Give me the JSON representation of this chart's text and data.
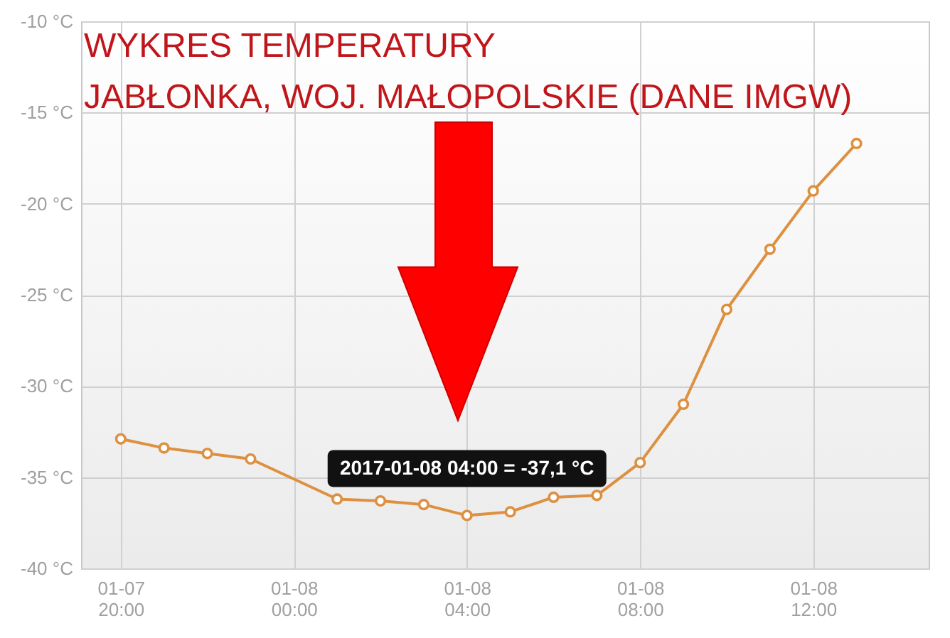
{
  "chart_data": {
    "type": "line",
    "title": "WYKRES TEMPERATURY",
    "subtitle": "JABŁONKA, WOJ. MAŁOPOLSKIE (DANE IMGW)",
    "x": [
      "2017-01-07T20:00",
      "2017-01-07T21:00",
      "2017-01-07T22:00",
      "2017-01-07T23:00",
      "2017-01-08T01:00",
      "2017-01-08T02:00",
      "2017-01-08T03:00",
      "2017-01-08T04:00",
      "2017-01-08T05:00",
      "2017-01-08T06:00",
      "2017-01-08T07:00",
      "2017-01-08T08:00",
      "2017-01-08T09:00",
      "2017-01-08T10:00",
      "2017-01-08T11:00",
      "2017-01-08T12:00",
      "2017-01-08T13:00"
    ],
    "series": [
      {
        "color": "#dd9040",
        "values": [
          -32.9,
          -33.4,
          -33.7,
          -34.0,
          -36.2,
          -36.3,
          -36.5,
          -37.1,
          -36.9,
          -36.1,
          -36.0,
          -34.2,
          -31.0,
          -25.8,
          -22.5,
          -19.3,
          -16.7
        ]
      }
    ],
    "xlim": [
      "2017-01-07T19:05",
      "2017-01-08T14:40"
    ],
    "xticks": [
      {
        "value": "2017-01-07T20:00",
        "label": "01-07 20:00"
      },
      {
        "value": "2017-01-08T00:00",
        "label": "01-08 00:00"
      },
      {
        "value": "2017-01-08T04:00",
        "label": "01-08 04:00"
      },
      {
        "value": "2017-01-08T08:00",
        "label": "01-08 08:00"
      },
      {
        "value": "2017-01-08T12:00",
        "label": "01-08 12:00"
      }
    ],
    "ylim": [
      -40,
      -10
    ],
    "yticks": [
      {
        "value": -40,
        "label": "-40 °C"
      },
      {
        "value": -35,
        "label": "-35 °C"
      },
      {
        "value": -30,
        "label": "-30 °C"
      },
      {
        "value": -25,
        "label": "-25 °C"
      },
      {
        "value": -20,
        "label": "-20 °C"
      },
      {
        "value": -15,
        "label": "-15 °C"
      },
      {
        "value": -10,
        "label": "-10 °C"
      }
    ],
    "annotations": [
      {
        "text": "2017-01-08 04:00 = -37,1 °C",
        "x": "2017-01-08T04:00",
        "y": -37.1
      }
    ],
    "grid": true,
    "marker": "circle",
    "line_style": "solid"
  }
}
